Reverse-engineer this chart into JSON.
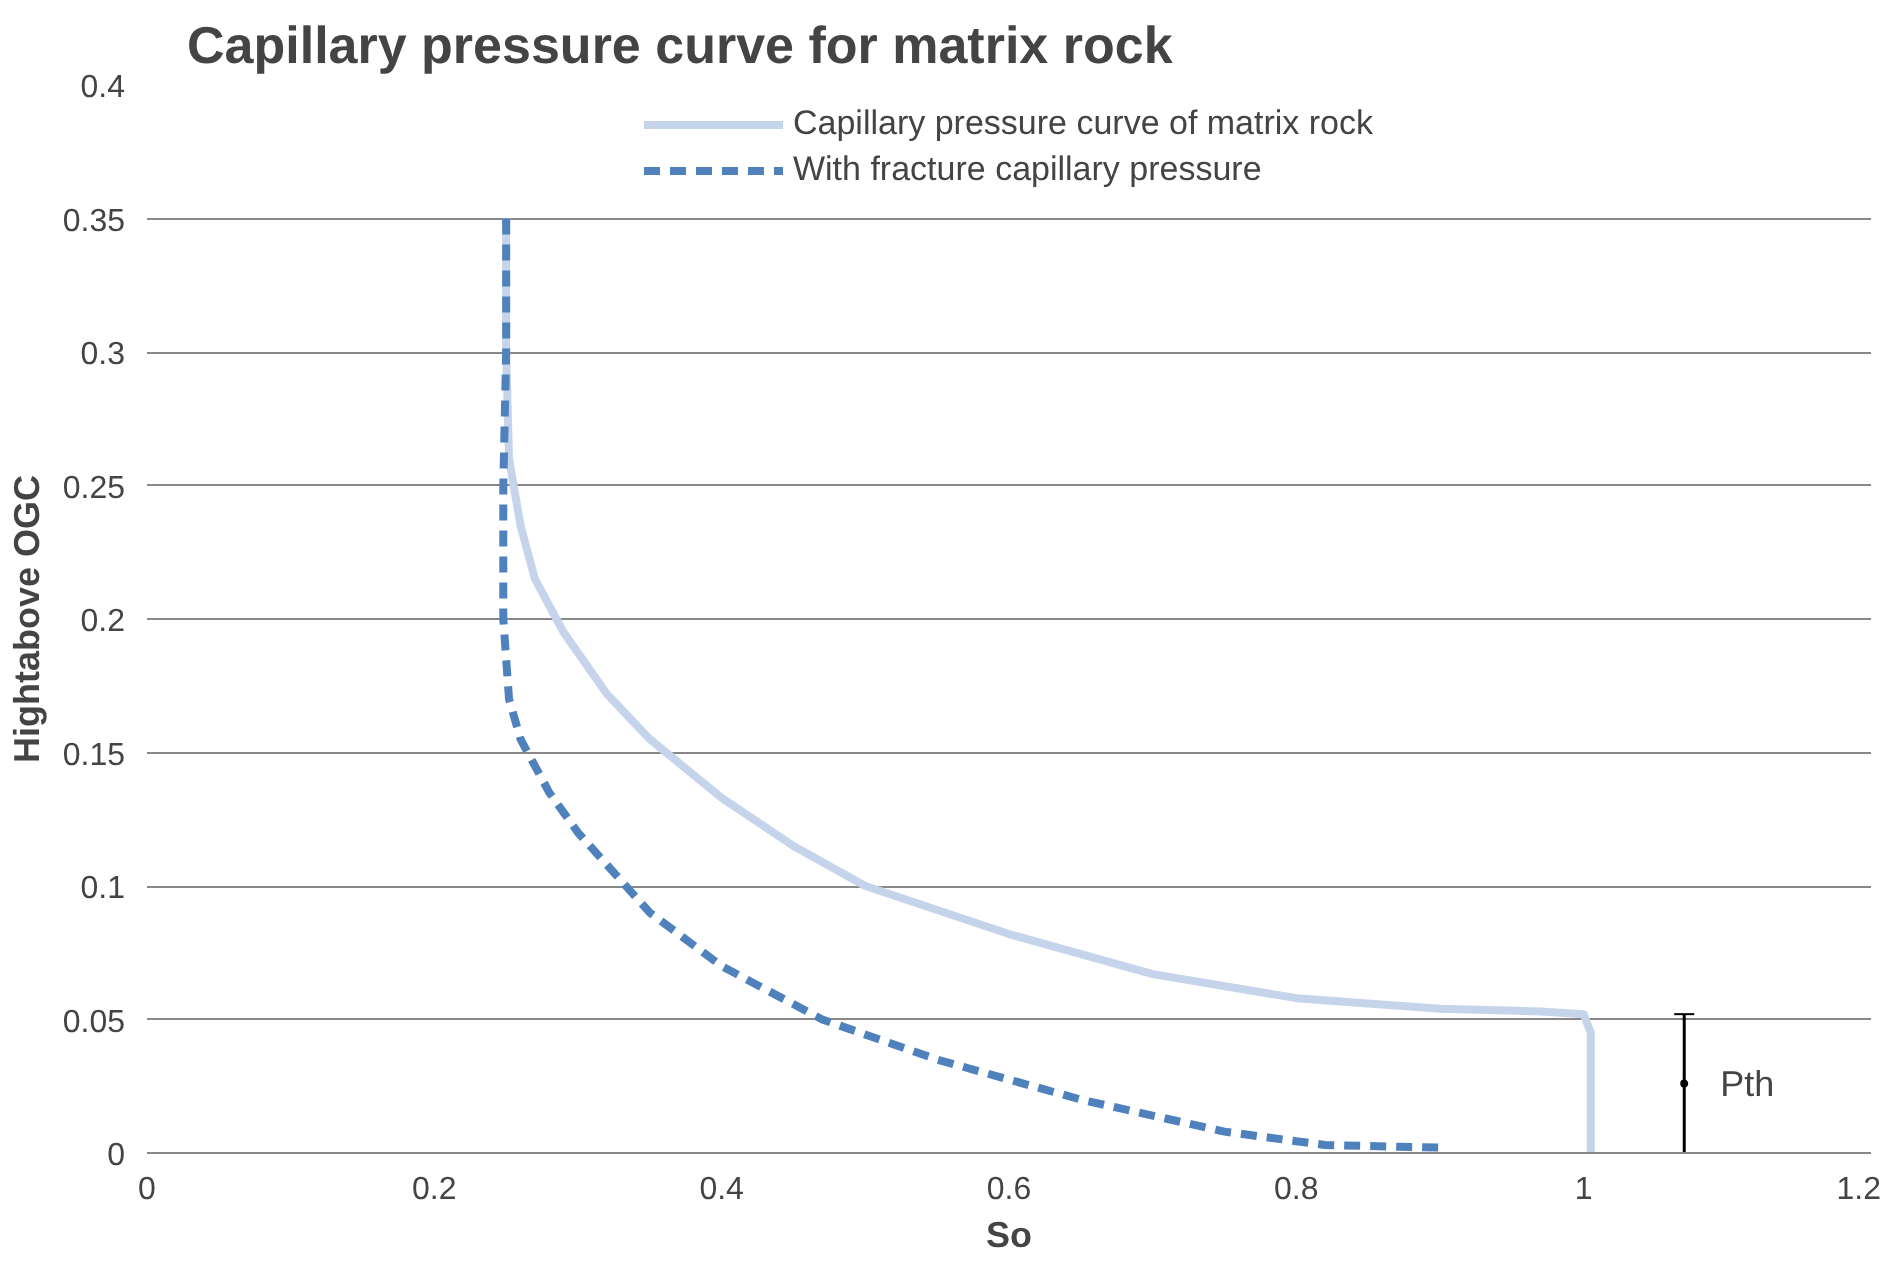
{
  "chart_data": {
    "type": "line",
    "title": "Capillary pressure curve for matrix rock",
    "xlabel": "So",
    "ylabel": "Hightabove OGC",
    "xlim": [
      0,
      1.2
    ],
    "xticks": [
      0,
      0.2,
      0.4,
      0.6,
      0.8,
      1,
      1.2
    ],
    "ylim": [
      0,
      0.4
    ],
    "yticks": [
      0,
      0.05,
      0.1,
      0.15,
      0.2,
      0.25,
      0.3,
      0.35,
      0.4
    ],
    "grid": "y",
    "legend": "top",
    "marker": "none",
    "series": [
      {
        "name": "Capillary pressure curve of matrix rock",
        "color": "#c6d4eb",
        "line_style": "solid",
        "x": [
          0.25,
          0.25,
          0.252,
          0.26,
          0.27,
          0.29,
          0.32,
          0.35,
          0.4,
          0.45,
          0.5,
          0.6,
          0.7,
          0.8,
          0.9,
          0.97,
          1.0,
          1.005,
          1.005
        ],
        "values": [
          0.35,
          0.3,
          0.26,
          0.235,
          0.215,
          0.195,
          0.172,
          0.155,
          0.133,
          0.115,
          0.1,
          0.082,
          0.067,
          0.058,
          0.054,
          0.053,
          0.052,
          0.045,
          0
        ]
      },
      {
        "name": "With fracture capillary pressure",
        "color": "#4f81bd",
        "line_style": "dashed",
        "x": [
          0.25,
          0.25,
          0.248,
          0.248,
          0.252,
          0.26,
          0.28,
          0.3,
          0.35,
          0.4,
          0.47,
          0.55,
          0.65,
          0.75,
          0.82,
          0.9
        ],
        "values": [
          0.35,
          0.3,
          0.25,
          0.2,
          0.17,
          0.155,
          0.135,
          0.12,
          0.09,
          0.07,
          0.05,
          0.035,
          0.02,
          0.008,
          0.003,
          0.002
        ]
      },
      {
        "type": "scatter",
        "marker": "none",
        "color": "#000000",
        "x": [
          1.07
        ],
        "values": [
          0.026
        ],
        "errors": [
          [
            0,
            0.052
          ]
        ]
      }
    ],
    "annotations": [
      "Pth"
    ]
  }
}
